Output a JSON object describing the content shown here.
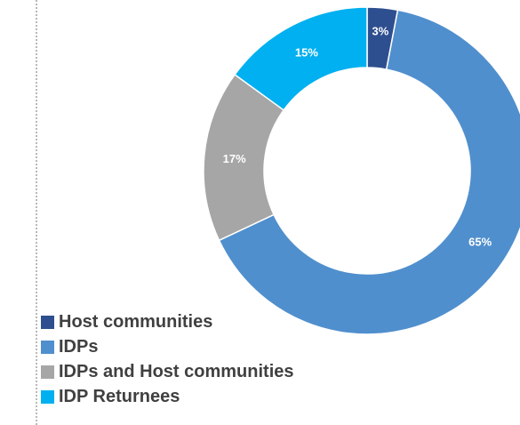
{
  "chart_data": {
    "type": "pie",
    "variant": "donut",
    "categories": [
      "Host communities",
      "IDPs",
      "IDPs and Host communities",
      "IDP Returnees"
    ],
    "values": [
      3,
      65,
      17,
      15
    ],
    "data_labels": [
      "3%",
      "65%",
      "17%",
      "15%"
    ],
    "colors": [
      "#2E4F8F",
      "#508FCD",
      "#A6A6A6",
      "#00B0F0"
    ],
    "legend": {
      "position": "bottom-left",
      "items": [
        {
          "label": "Host communities",
          "color": "#2E4F8F"
        },
        {
          "label": "IDPs",
          "color": "#508FCD"
        },
        {
          "label": "IDPs and Host communities",
          "color": "#A6A6A6"
        },
        {
          "label": "IDP Returnees",
          "color": "#00B0F0"
        }
      ]
    }
  }
}
